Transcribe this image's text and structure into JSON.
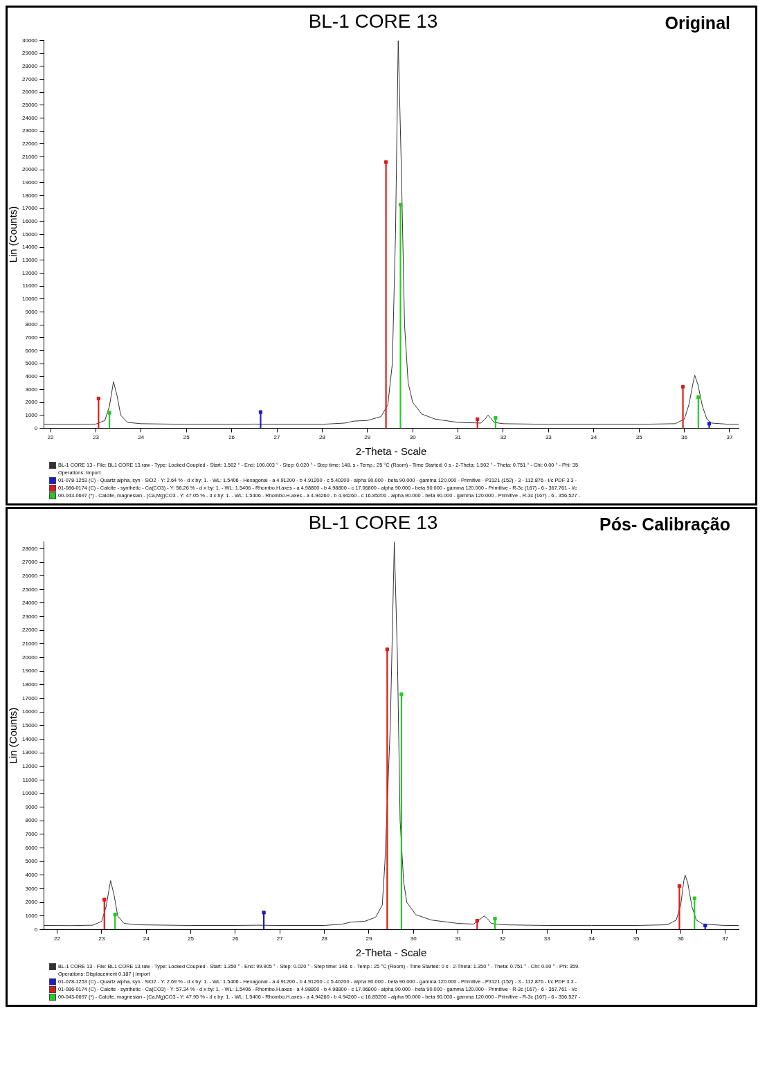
{
  "chart_data": [
    {
      "type": "line",
      "title": "BL-1 CORE 13",
      "subtitle": "Original",
      "xlabel": "2-Theta - Scale",
      "ylabel": "Lin (Counts)",
      "annotations": [
        "Operations: Import"
      ],
      "legend": "bottom",
      "grid": false,
      "marker": "square",
      "xlim": [
        21.85,
        37.2
      ],
      "xticks": [
        22,
        23,
        24,
        25,
        26,
        27,
        28,
        29,
        30,
        31,
        32,
        33,
        34,
        35,
        36,
        37
      ],
      "ylim": [
        0,
        30000
      ],
      "yticks": [
        0,
        1000,
        2000,
        3000,
        4000,
        5000,
        6000,
        7000,
        8000,
        9000,
        10000,
        11000,
        12000,
        13000,
        14000,
        15000,
        16000,
        17000,
        18000,
        19000,
        20000,
        21000,
        22000,
        23000,
        24000,
        25000,
        26000,
        27000,
        28000,
        29000,
        30000
      ],
      "series": [
        {
          "name": "BL-1 CORE 13 - File: BL1 CORE 13.raw - Type: Locked Coupled - Start: 1.502 ° - End: 100.003 ° - Step: 0.020 ° - Step time: 148. s - Temp.: 25 °C (Room) - Time Started: 0 s - 2-Theta: 1.502 ° - Theta: 0.751 ° - Chi: 0.00 ° - Phi: 35",
          "marker": "none",
          "color": "#333333",
          "x": [
            21.85,
            22.5,
            23.0,
            23.2,
            23.3,
            23.39,
            23.47,
            23.55,
            23.7,
            24,
            25,
            26,
            26.5,
            27,
            28,
            28.5,
            28.7,
            29,
            29.3,
            29.45,
            29.55,
            29.62,
            29.68,
            29.75,
            29.82,
            29.9,
            30.0,
            30.2,
            30.5,
            31,
            31.5,
            31.6,
            31.66,
            31.72,
            31.8,
            32,
            33,
            34,
            35,
            35.8,
            36.0,
            36.1,
            36.2,
            36.23,
            36.3,
            36.4,
            36.5,
            36.6,
            37,
            37.2
          ],
          "values": [
            300,
            290,
            320,
            600,
            1700,
            3600,
            2500,
            1000,
            450,
            350,
            300,
            300,
            320,
            300,
            300,
            400,
            550,
            600,
            900,
            1800,
            5000,
            15000,
            30000,
            20000,
            8000,
            3500,
            2000,
            1100,
            700,
            450,
            400,
            700,
            1000,
            800,
            450,
            350,
            300,
            300,
            300,
            350,
            700,
            1800,
            3600,
            4100,
            3400,
            1700,
            700,
            400,
            300,
            300
          ]
        },
        {
          "name": "01-078-1253 (C) - Quartz alpha, syn - SiO2 - Y: 2.64 % - d x by: 1. - WL: 1.5406 - Hexagonal - a 4.91200 - b 4.91200 - c 5.40200 - alpha 90.000 - beta 90.000 - gamma 120.000 - Primitive - P3121 (152) - 3 - 112.876 - I/c PDF 3.3 -",
          "type": "lollipop",
          "color": "#1a1acc",
          "x": [
            26.64,
            36.55
          ],
          "values": [
            1250,
            350
          ]
        },
        {
          "name": "01-086-0174 (C) - Calcite - synthetic - Ca(CO3) - Y: 56.26 % - d x by: 1. - WL: 1.5406 - Rhombo.H.axes - a 4.98800 - b 4.98800 - c 17.06800 - alpha 90.000 - beta 90.000 - gamma 120.000 - Primitive - R-3c (167) - 6 - 367.761 - I/c",
          "type": "lollipop",
          "color": "#e01818",
          "x": [
            23.06,
            29.41,
            31.43,
            35.97
          ],
          "values": [
            2300,
            20600,
            700,
            3200
          ]
        },
        {
          "name": "00-043-0697 (*) - Calcite, magnesian - (Ca,Mg)CO3 - Y: 47.05 % - d x by: 1. - WL: 1.5406 - Rhombo.H.axes - a 4.94260 - b 4.94260 - c 16.85200 - alpha 90.000 - beta 90.000 - gamma 120.000 - Primitive - R-3c (167) - 6 - 356.527 -",
          "type": "lollipop",
          "color": "#22cc22",
          "x": [
            23.3,
            29.73,
            31.83,
            36.31
          ],
          "values": [
            1200,
            17300,
            800,
            2400
          ]
        }
      ]
    },
    {
      "type": "line",
      "title": "BL-1 CORE 13",
      "subtitle": "Pós- Calibração",
      "xlabel": "2-Theta - Scale",
      "ylabel": "Lin (Counts)",
      "annotations": [
        "Operations: Displacement 0.187 | Import"
      ],
      "legend": "bottom",
      "grid": false,
      "marker": "square",
      "xlim": [
        21.7,
        37.3
      ],
      "xticks": [
        22,
        23,
        24,
        25,
        26,
        27,
        28,
        29,
        30,
        31,
        32,
        33,
        34,
        35,
        36,
        37
      ],
      "ylim": [
        0,
        28500
      ],
      "yticks": [
        0,
        1000,
        2000,
        3000,
        4000,
        5000,
        6000,
        7000,
        8000,
        9000,
        10000,
        11000,
        12000,
        13000,
        14000,
        15000,
        16000,
        17000,
        18000,
        19000,
        20000,
        21000,
        22000,
        23000,
        24000,
        25000,
        26000,
        27000,
        28000
      ],
      "series": [
        {
          "name": "BL-1 CORE 13 - File: BL1 CORE 13.raw - Type: Locked Coupled - Start: 1.350 ° - End: 99.905 ° - Step: 0.020 ° - Step time: 148. s - Temp.: 25 °C (Room) - Time Started: 0 s - 2-Theta: 1.350 ° - Theta: 0.751 ° - Chi: 0.00 ° - Phi: 359.",
          "marker": "none",
          "color": "#333333",
          "x": [
            21.7,
            22.3,
            22.8,
            23.0,
            23.1,
            23.2,
            23.28,
            23.36,
            23.5,
            23.8,
            25,
            26,
            26.5,
            27,
            28,
            28.4,
            28.6,
            28.9,
            29.15,
            29.3,
            29.36,
            29.48,
            29.57,
            29.64,
            29.7,
            29.78,
            29.85,
            30.05,
            30.4,
            31,
            31.35,
            31.47,
            31.59,
            31.66,
            31.75,
            32,
            33,
            34,
            35,
            35.7,
            35.9,
            36.0,
            36.07,
            36.1,
            36.16,
            36.25,
            36.35,
            36.5,
            37,
            37.3
          ],
          "values": [
            300,
            290,
            320,
            600,
            1700,
            3600,
            2500,
            1000,
            450,
            350,
            300,
            300,
            320,
            300,
            300,
            400,
            550,
            600,
            900,
            1800,
            5000,
            15000,
            28500,
            20000,
            8000,
            3500,
            2000,
            1100,
            700,
            450,
            400,
            700,
            1000,
            800,
            450,
            350,
            300,
            300,
            300,
            350,
            700,
            1800,
            3600,
            4000,
            3400,
            1700,
            700,
            400,
            300,
            300
          ]
        },
        {
          "name": "01-078-1253 (C) - Quartz alpha, syn - SiO2 - Y: 2.69 % - d x by: 1. - WL: 1.5406 - Hexagonal - a 4.91200 - b 4.91200 - c 5.40200 - alpha 90.000 - beta 90.000 - gamma 120.000 - Primitive - P3121 (152) - 3 - 112.876 - I/c PDF 3.3 -",
          "type": "lollipop",
          "color": "#1a1acc",
          "x": [
            26.64,
            36.55
          ],
          "values": [
            1250,
            300
          ]
        },
        {
          "name": "01-086-0174 (C) - Calcite - synthetic - Ca(CO3) - Y: 57.34 % - d x by: 1. - WL: 1.5406 - Rhombo.H.axes - a 4.98800 - b 4.98800 - c 17.06800 - alpha 90.000 - beta 90.000 - gamma 120.000 - Primitive - R-3c (167) - 6 - 367.761 - I/c",
          "type": "lollipop",
          "color": "#e01818",
          "x": [
            23.06,
            29.41,
            31.43,
            35.97
          ],
          "values": [
            2200,
            20600,
            650,
            3200
          ]
        },
        {
          "name": "00-043-0697 (*) - Calcite, magnesian - (Ca,Mg)CO3 - Y: 47.95 % - d x by: 1. - WL: 1.5406 - Rhombo.H.axes - a 4.94260 - b 4.94260 - c 16.85200 - alpha 90.000 - beta 90.000 - gamma 120.000 - Primitive - R-3c (167) - 6 - 356.527 -",
          "type": "lollipop",
          "color": "#22cc22",
          "x": [
            23.3,
            29.73,
            31.83,
            36.31
          ],
          "values": [
            1100,
            17300,
            800,
            2300
          ]
        }
      ]
    }
  ]
}
